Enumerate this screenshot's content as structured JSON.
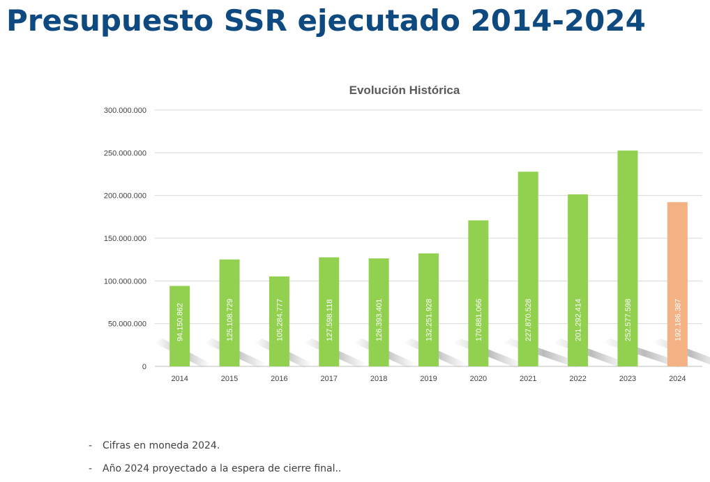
{
  "page": {
    "title": "Presupuesto SSR ejecutado 2014-2024"
  },
  "chart_data": {
    "type": "bar",
    "title": "Evolución Histórica",
    "xlabel": "",
    "ylabel": "",
    "ylim": [
      0,
      300000000
    ],
    "yticks": [
      0,
      50000000,
      100000000,
      150000000,
      200000000,
      250000000,
      300000000
    ],
    "ytick_labels": [
      "0",
      "50.000.000",
      "100.000.000",
      "150.000.000",
      "200.000.000",
      "250.000.000",
      "300.000.000"
    ],
    "grid": true,
    "categories": [
      "2014",
      "2015",
      "2016",
      "2017",
      "2018",
      "2019",
      "2020",
      "2021",
      "2022",
      "2023",
      "2024"
    ],
    "values": [
      94150862,
      125108729,
      105284777,
      127598118,
      126393401,
      132251928,
      170881066,
      227870528,
      201292414,
      252577598,
      192186387
    ],
    "value_labels": [
      "94.150.862",
      "125.108.729",
      "105.284.777",
      "127.598.118",
      "126.393.401",
      "132.251.928",
      "170.881.066",
      "227.870.528",
      "201.292.414",
      "252.577.598",
      "192.186.387"
    ],
    "colors": {
      "executed": "#92d050",
      "projected": "#f4b183",
      "grid": "#d9d9d9",
      "shadow": "#bfbfbf"
    },
    "bar_color_keys": [
      "executed",
      "executed",
      "executed",
      "executed",
      "executed",
      "executed",
      "executed",
      "executed",
      "executed",
      "executed",
      "projected"
    ]
  },
  "notes": [
    {
      "dash": "-",
      "text": "Cifras en moneda 2024."
    },
    {
      "dash": "-",
      "text": "Año 2024 proyectado a la espera de cierre final.."
    }
  ]
}
